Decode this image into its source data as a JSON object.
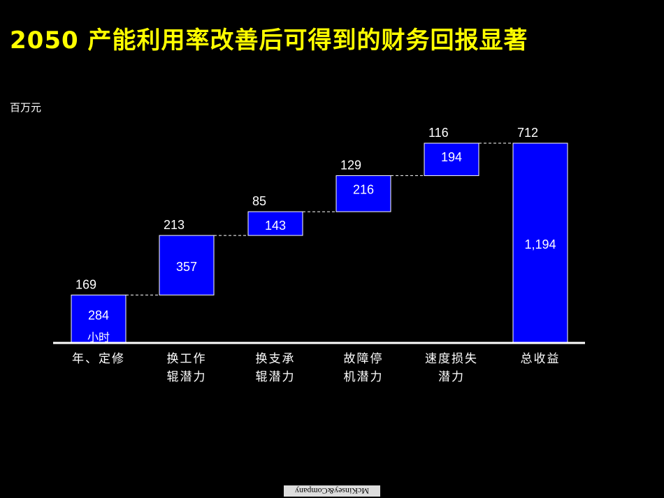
{
  "title": "2050 产能利用率改善后可得到的财务回报显著",
  "unit_label": "百万元",
  "logo_text": "McKinsey&Company",
  "chart_data": {
    "type": "bar",
    "subtype": "waterfall",
    "bar_color": "#0000ff",
    "categories": [
      [
        "年、定修"
      ],
      [
        "换工作",
        "辊潜力"
      ],
      [
        "换支承",
        "辊潜力"
      ],
      [
        "故障停",
        "机潜力"
      ],
      [
        "速度损失",
        "潜力"
      ],
      [
        "总收益"
      ]
    ],
    "values": [
      169,
      213,
      85,
      129,
      116,
      712
    ],
    "inner_labels": [
      "284",
      "357",
      "143",
      "216",
      "194",
      "1,194"
    ],
    "extra_labels": [
      "小时",
      "",
      "",
      "",
      "",
      ""
    ],
    "is_total": [
      false,
      false,
      false,
      false,
      false,
      true
    ],
    "ylim": [
      0,
      712
    ]
  }
}
